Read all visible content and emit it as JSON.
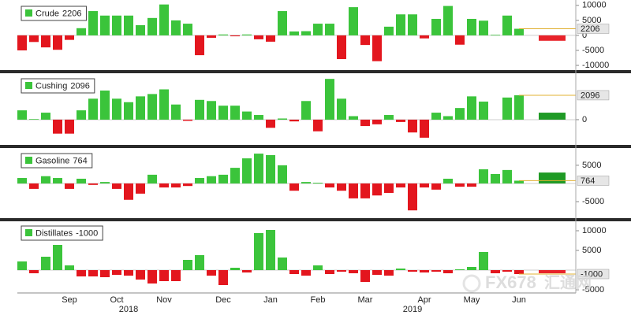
{
  "chart_data": [
    {
      "type": "bar",
      "series": [
        {
          "name": "Crude",
          "values": [
            -5000,
            -2200,
            -4000,
            -4800,
            -1500,
            2400,
            8100,
            6600,
            6600,
            6600,
            3400,
            5800,
            10300,
            5000,
            3900,
            -6600,
            -800,
            300,
            -300,
            300,
            -1300,
            -2100,
            8100,
            1300,
            1400,
            3900,
            3900,
            -7900,
            9400,
            -3200,
            -8600,
            2900,
            7000,
            7000,
            -1000,
            5500,
            9800,
            -3100,
            5500,
            4900,
            200,
            6600,
            2206
          ]
        }
      ],
      "summary_value": -1800,
      "summary_color": "#e8232a",
      "color_positive": "#3bc43b",
      "color_negative": "#e3161e",
      "ylim": [
        -11300,
        11000
      ],
      "yticks": [
        10000,
        5000,
        0,
        -5000,
        -10000
      ]
    },
    {
      "type": "bar",
      "series": [
        {
          "name": "Cushing",
          "values": [
            800,
            50,
            600,
            -1200,
            -1200,
            800,
            1800,
            2500,
            1800,
            1500,
            2000,
            2200,
            2600,
            1300,
            -100,
            1700,
            1600,
            1200,
            1200,
            700,
            400,
            -700,
            100,
            -150,
            1600,
            -1000,
            3500,
            1800,
            300,
            -550,
            -400,
            400,
            -200,
            -1100,
            -1550,
            600,
            300,
            1000,
            2000,
            1550,
            0,
            1900,
            2096
          ]
        }
      ],
      "summary_value": 600,
      "summary_color": "#1f9a25",
      "color_positive": "#3bc43b",
      "color_negative": "#e3161e",
      "ylim": [
        -2100,
        3850
      ],
      "yticks": [
        0
      ]
    },
    {
      "type": "bar",
      "series": [
        {
          "name": "Gasoline",
          "values": [
            1500,
            -1500,
            2000,
            1500,
            -1500,
            1300,
            -400,
            400,
            -1500,
            -4500,
            -2800,
            2400,
            -1100,
            -1100,
            -700,
            1500,
            2000,
            2400,
            4300,
            6900,
            8200,
            7800,
            5000,
            -2000,
            400,
            200,
            -1100,
            -2000,
            -4100,
            -4100,
            -3300,
            -2600,
            -1100,
            -7400,
            -1100,
            -1700,
            1300,
            -900,
            -900,
            3900,
            2600,
            3700,
            764
          ]
        }
      ],
      "summary_value": 3000,
      "summary_color": "#1f9a25",
      "color_positive": "#3bc43b",
      "color_negative": "#e3161e",
      "ylim": [
        -9100,
        9300
      ],
      "yticks": [
        5000,
        -5000
      ]
    },
    {
      "type": "bar",
      "series": [
        {
          "name": "Distillates",
          "values": [
            2200,
            -800,
            3400,
            6400,
            1200,
            -1600,
            -1600,
            -1800,
            -1200,
            -1400,
            -2400,
            -3400,
            -2800,
            -2800,
            2600,
            3800,
            -1400,
            -3800,
            600,
            -600,
            9400,
            10200,
            3200,
            -1000,
            -1400,
            1200,
            -1000,
            -400,
            -800,
            -3000,
            -1200,
            -1400,
            400,
            -400,
            -600,
            -400,
            -800,
            200,
            800,
            4600,
            -800,
            -400,
            -1000
          ]
        }
      ],
      "summary_value": -800,
      "summary_color": "#e8232a",
      "color_positive": "#3bc43b",
      "color_negative": "#e3161e",
      "ylim": [
        -5800,
        12200
      ],
      "yticks": [
        10000,
        5000,
        -5000
      ],
      "categories": [
        null,
        null,
        null,
        null,
        "Sep",
        null,
        null,
        null,
        "Oct",
        null,
        null,
        null,
        "Nov",
        null,
        null,
        null,
        null,
        "Dec",
        null,
        null,
        null,
        "Jan",
        null,
        null,
        null,
        "Feb",
        null,
        null,
        null,
        "Mar",
        null,
        null,
        null,
        null,
        "Apr",
        null,
        null,
        null,
        "May",
        null,
        null,
        null,
        "Jun"
      ],
      "years": [
        null,
        null,
        null,
        null,
        null,
        null,
        null,
        null,
        null,
        "2018",
        null,
        null,
        null,
        null,
        null,
        null,
        null,
        null,
        null,
        null,
        null,
        null,
        null,
        null,
        null,
        null,
        null,
        null,
        null,
        null,
        null,
        null,
        null,
        "2019",
        null,
        null,
        null,
        null,
        null,
        null,
        null,
        null,
        null
      ],
      "watermark": [
        "FX678",
        "汇通网"
      ]
    }
  ]
}
